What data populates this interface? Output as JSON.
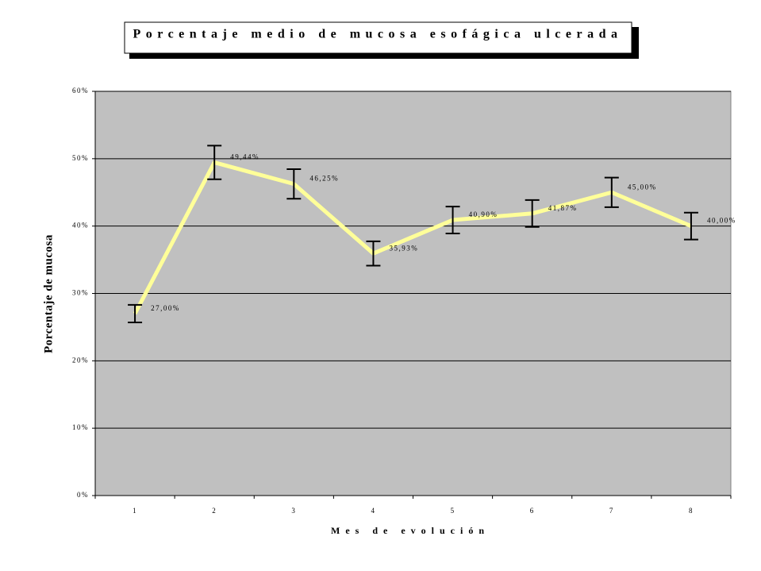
{
  "chart_data": {
    "type": "line",
    "title": "Porcentaje medio de mucosa esofágica ulcerada",
    "x_label": "Mes de evolución",
    "y_label": "Porcentaje de mucosa",
    "categories": [
      "1",
      "2",
      "3",
      "4",
      "5",
      "6",
      "7",
      "8"
    ],
    "series": [
      {
        "color": "#ffff99",
        "values": [
          27,
          49.44,
          46.25,
          35.93,
          40.9,
          41.87,
          45,
          40
        ],
        "value_labels": [
          "27,00%",
          "49,44%",
          "46,25%",
          "35,93%",
          "40,90%",
          "41,87%",
          "45,00%",
          "40,00%"
        ],
        "errors": [
          1.3,
          2.5,
          2.2,
          1.8,
          2,
          2,
          2.2,
          2
        ]
      }
    ],
    "ylim": [
      0,
      60
    ],
    "yticks": [
      {
        "value": 0,
        "label": "0%"
      },
      {
        "value": 10,
        "label": "10%"
      },
      {
        "value": 20,
        "label": "20%"
      },
      {
        "value": 30,
        "label": "30%"
      },
      {
        "value": 40,
        "label": "40%"
      },
      {
        "value": 50,
        "label": "50%"
      },
      {
        "value": 60,
        "label": "60%"
      }
    ],
    "grid": true,
    "plot_background": "#c0c0c0"
  }
}
